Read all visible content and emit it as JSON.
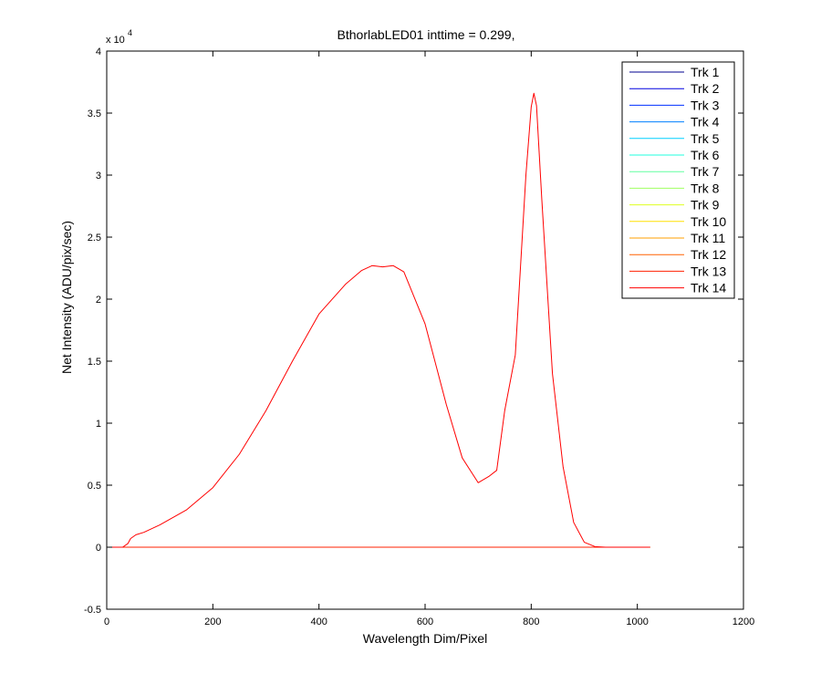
{
  "chart_data": {
    "type": "line",
    "title": "BthorlabLED01 inttime = 0.299,",
    "xlabel": "Wavelength Dim/Pixel",
    "ylabel": "Net Intensity (ADU/pix/sec)",
    "y_exponent_label": "x 10",
    "y_exponent": "4",
    "xlim": [
      0,
      1200
    ],
    "ylim": [
      -5000,
      40000
    ],
    "xticks": [
      0,
      200,
      400,
      600,
      800,
      1000,
      1200
    ],
    "xtick_labels": [
      "0",
      "200",
      "400",
      "600",
      "800",
      "1000",
      "1200"
    ],
    "yticks": [
      -5000,
      0,
      5000,
      10000,
      15000,
      20000,
      25000,
      30000,
      35000,
      40000
    ],
    "ytick_labels": [
      "-0.5",
      "0",
      "0.5",
      "1",
      "1.5",
      "2",
      "2.5",
      "3",
      "3.5",
      "4"
    ],
    "grid": false,
    "legend_position": "top-right",
    "series": [
      {
        "name": "Trk 1",
        "color": "#00008F",
        "x": [
          0,
          1024
        ],
        "y": [
          0,
          0
        ]
      },
      {
        "name": "Trk 2",
        "color": "#0000DF",
        "x": [
          0,
          1024
        ],
        "y": [
          0,
          0
        ]
      },
      {
        "name": "Trk 3",
        "color": "#0030FF",
        "x": [
          0,
          1024
        ],
        "y": [
          0,
          0
        ]
      },
      {
        "name": "Trk 4",
        "color": "#0080FF",
        "x": [
          0,
          1024
        ],
        "y": [
          0,
          0
        ]
      },
      {
        "name": "Trk 5",
        "color": "#00CFFF",
        "x": [
          0,
          1024
        ],
        "y": [
          0,
          0
        ]
      },
      {
        "name": "Trk 6",
        "color": "#20FFDF",
        "x": [
          0,
          1024
        ],
        "y": [
          0,
          0
        ]
      },
      {
        "name": "Trk 7",
        "color": "#60FFA0",
        "x": [
          0,
          1024
        ],
        "y": [
          0,
          0
        ]
      },
      {
        "name": "Trk 8",
        "color": "#9FFF60",
        "x": [
          0,
          1024
        ],
        "y": [
          0,
          0
        ]
      },
      {
        "name": "Trk 9",
        "color": "#DFFF20",
        "x": [
          0,
          1024
        ],
        "y": [
          0,
          0
        ]
      },
      {
        "name": "Trk 10",
        "color": "#FFE000",
        "x": [
          0,
          1024
        ],
        "y": [
          0,
          0
        ]
      },
      {
        "name": "Trk 11",
        "color": "#FF9F00",
        "x": [
          0,
          1024
        ],
        "y": [
          0,
          0
        ]
      },
      {
        "name": "Trk 12",
        "color": "#FF6000",
        "x": [
          0,
          1024
        ],
        "y": [
          0,
          0
        ]
      },
      {
        "name": "Trk 13",
        "color": "#FF2000",
        "x": [
          0,
          1024
        ],
        "y": [
          0,
          0
        ]
      },
      {
        "name": "Trk 14",
        "color": "#FF0000",
        "x": [
          0,
          30,
          40,
          45,
          55,
          70,
          100,
          150,
          200,
          250,
          300,
          350,
          400,
          450,
          480,
          500,
          520,
          540,
          560,
          600,
          640,
          670,
          700,
          720,
          735,
          750,
          770,
          790,
          800,
          805,
          810,
          820,
          840,
          860,
          880,
          900,
          920,
          940,
          1024
        ],
        "y": [
          0,
          0,
          300,
          700,
          1000,
          1200,
          1800,
          3000,
          4800,
          7500,
          11000,
          15000,
          18800,
          21200,
          22300,
          22700,
          22600,
          22700,
          22200,
          18000,
          11500,
          7200,
          5200,
          5700,
          6200,
          11000,
          15500,
          30000,
          35500,
          36600,
          35600,
          28000,
          14000,
          6500,
          2000,
          400,
          50,
          0,
          0
        ]
      }
    ]
  }
}
